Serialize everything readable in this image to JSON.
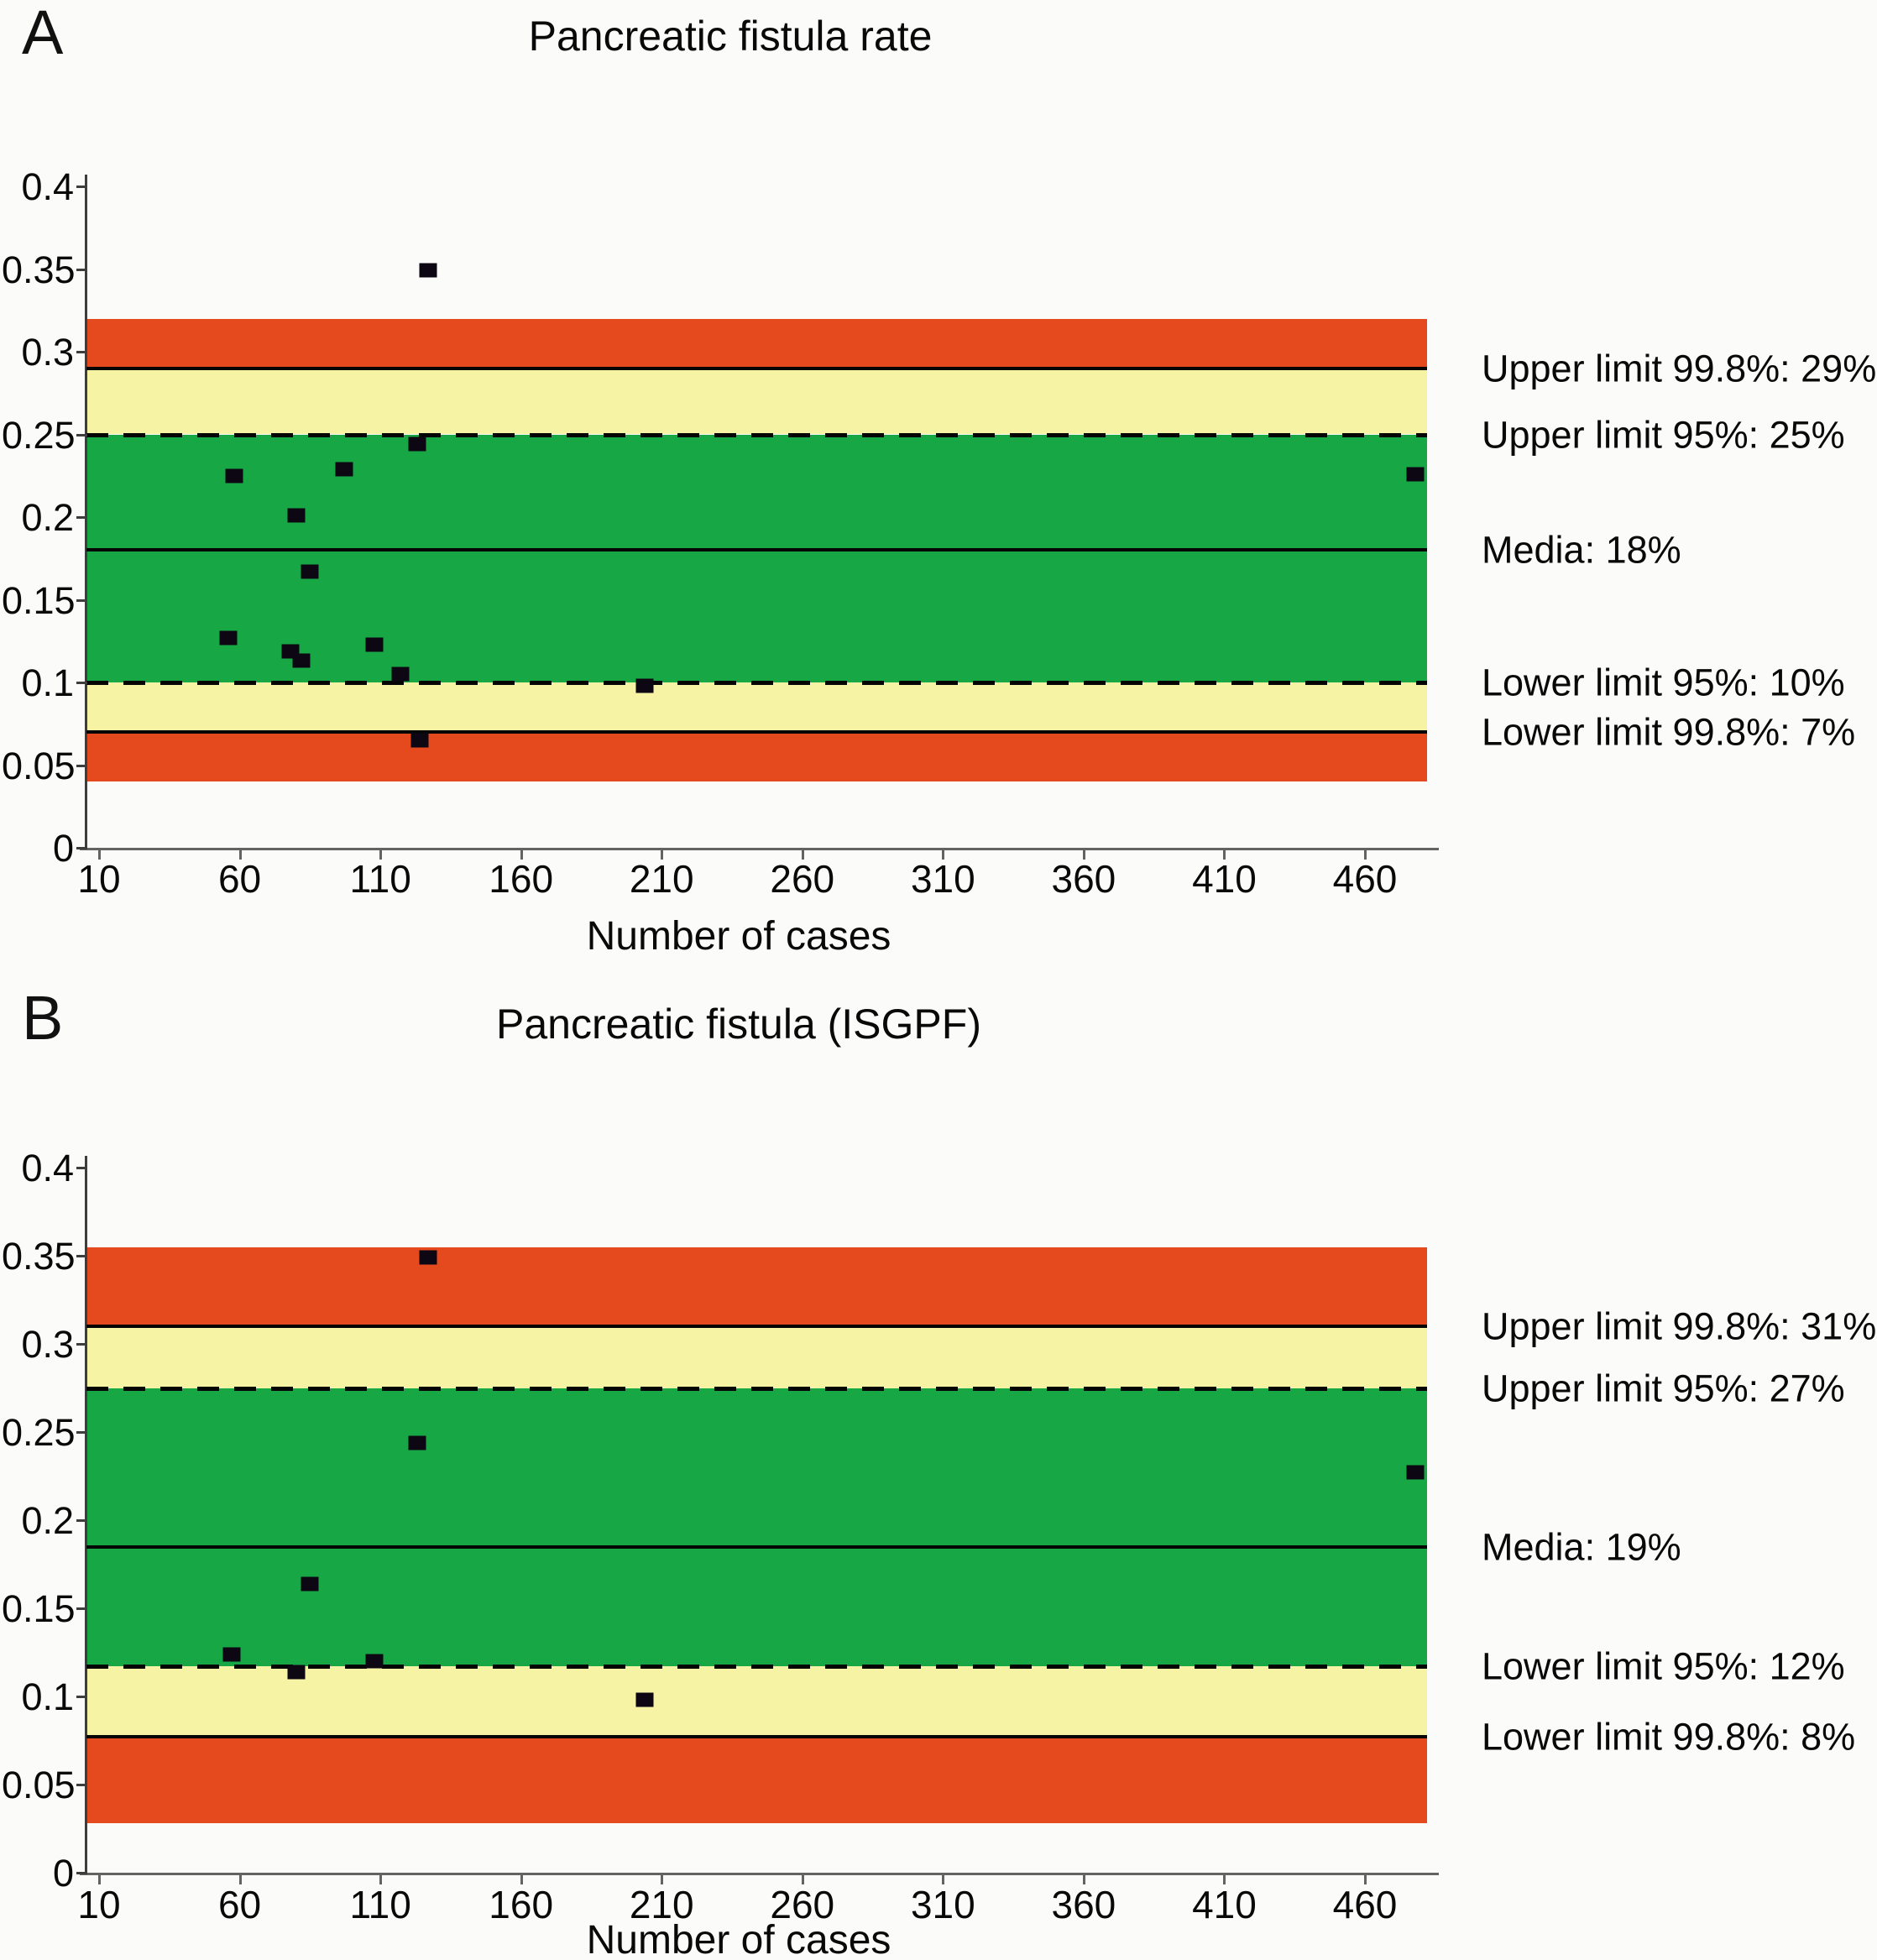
{
  "page": {
    "background": "#fbfbf9",
    "figure_type": "funnel-control-charts",
    "shared_x_axis_label": "Number of cases"
  },
  "colors": {
    "red": "#e54a1e",
    "yellow": "#f7f3a4",
    "green": "#17a845",
    "line": "#050505",
    "marker": "#0c0712"
  },
  "chart_data": [
    {
      "type": "scatter",
      "panel_label": "A",
      "title": "Pancreatic fistula rate",
      "xlabel": "Number of cases",
      "x_axis": {
        "min": 10,
        "max": 482,
        "ticks": [
          10,
          60,
          110,
          160,
          210,
          260,
          310,
          360,
          410,
          460
        ]
      },
      "y_axis": {
        "min": 0,
        "max": 0.4,
        "ticks": [
          0.4,
          0.35,
          0.3,
          0.25,
          0.2,
          0.15,
          0.1,
          0.05,
          0
        ]
      },
      "bands": [
        {
          "from": 0.29,
          "to": 0.32,
          "color": "red"
        },
        {
          "from": 0.25,
          "to": 0.29,
          "color": "yellow"
        },
        {
          "from": 0.1,
          "to": 0.25,
          "color": "green"
        },
        {
          "from": 0.07,
          "to": 0.1,
          "color": "yellow"
        },
        {
          "from": 0.04,
          "to": 0.07,
          "color": "red"
        }
      ],
      "lines": [
        {
          "value": 0.29,
          "style": "solid",
          "meaning": "upper-99.8-limit"
        },
        {
          "value": 0.25,
          "style": "dashed",
          "meaning": "upper-95-limit"
        },
        {
          "value": 0.18,
          "style": "solid",
          "meaning": "media"
        },
        {
          "value": 0.1,
          "style": "dashed",
          "meaning": "lower-95-limit"
        },
        {
          "value": 0.07,
          "style": "solid",
          "meaning": "lower-99.8-limit"
        }
      ],
      "points": [
        [
          56,
          0.127
        ],
        [
          58,
          0.225
        ],
        [
          78,
          0.119
        ],
        [
          80,
          0.201
        ],
        [
          82,
          0.113
        ],
        [
          85,
          0.167
        ],
        [
          97,
          0.229
        ],
        [
          108,
          0.123
        ],
        [
          117,
          0.105
        ],
        [
          123,
          0.244
        ],
        [
          124,
          0.065
        ],
        [
          127,
          0.349
        ],
        [
          204,
          0.098
        ],
        [
          478,
          0.226
        ]
      ],
      "annotations": [
        {
          "text": "Upper limit 99.8%: 29%",
          "value": 0.29
        },
        {
          "text": "Upper limit 95%: 25%",
          "value": 0.25
        },
        {
          "text": "Media: 18%",
          "value": 0.18
        },
        {
          "text": "Lower limit 95%: 10%",
          "value": 0.1
        },
        {
          "text": "Lower limit 99.8%: 7%",
          "value": 0.07
        }
      ]
    },
    {
      "type": "scatter",
      "panel_label": "B",
      "title": "Pancreatic fistula (ISGPF)",
      "xlabel": "Number of cases",
      "x_axis": {
        "min": 10,
        "max": 482,
        "ticks": [
          10,
          60,
          110,
          160,
          210,
          260,
          310,
          360,
          410,
          460
        ]
      },
      "y_axis": {
        "min": 0,
        "max": 0.4,
        "ticks": [
          0.4,
          0.35,
          0.3,
          0.25,
          0.2,
          0.15,
          0.1,
          0.05,
          0
        ]
      },
      "bands": [
        {
          "from": 0.31,
          "to": 0.355,
          "color": "red"
        },
        {
          "from": 0.275,
          "to": 0.31,
          "color": "yellow"
        },
        {
          "from": 0.117,
          "to": 0.275,
          "color": "green"
        },
        {
          "from": 0.077,
          "to": 0.117,
          "color": "yellow"
        },
        {
          "from": 0.028,
          "to": 0.077,
          "color": "red"
        }
      ],
      "lines": [
        {
          "value": 0.31,
          "style": "solid",
          "meaning": "upper-99.8-limit"
        },
        {
          "value": 0.275,
          "style": "dashed",
          "meaning": "upper-95-limit"
        },
        {
          "value": 0.185,
          "style": "solid",
          "meaning": "media"
        },
        {
          "value": 0.117,
          "style": "dashed",
          "meaning": "lower-95-limit"
        },
        {
          "value": 0.077,
          "style": "solid",
          "meaning": "lower-99.8-limit"
        }
      ],
      "points": [
        [
          57,
          0.124
        ],
        [
          80,
          0.114
        ],
        [
          85,
          0.164
        ],
        [
          108,
          0.12
        ],
        [
          123,
          0.244
        ],
        [
          127,
          0.349
        ],
        [
          204,
          0.098
        ],
        [
          478,
          0.227
        ]
      ],
      "annotations": [
        {
          "text": "Upper limit 99.8%: 31%",
          "value": 0.31
        },
        {
          "text": "Upper limit 95%: 27%",
          "value": 0.275
        },
        {
          "text": "Media: 19%",
          "value": 0.185
        },
        {
          "text": "Lower limit 95%: 12%",
          "value": 0.117
        },
        {
          "text": "Lower limit 99.8%: 8%",
          "value": 0.077
        }
      ]
    }
  ]
}
